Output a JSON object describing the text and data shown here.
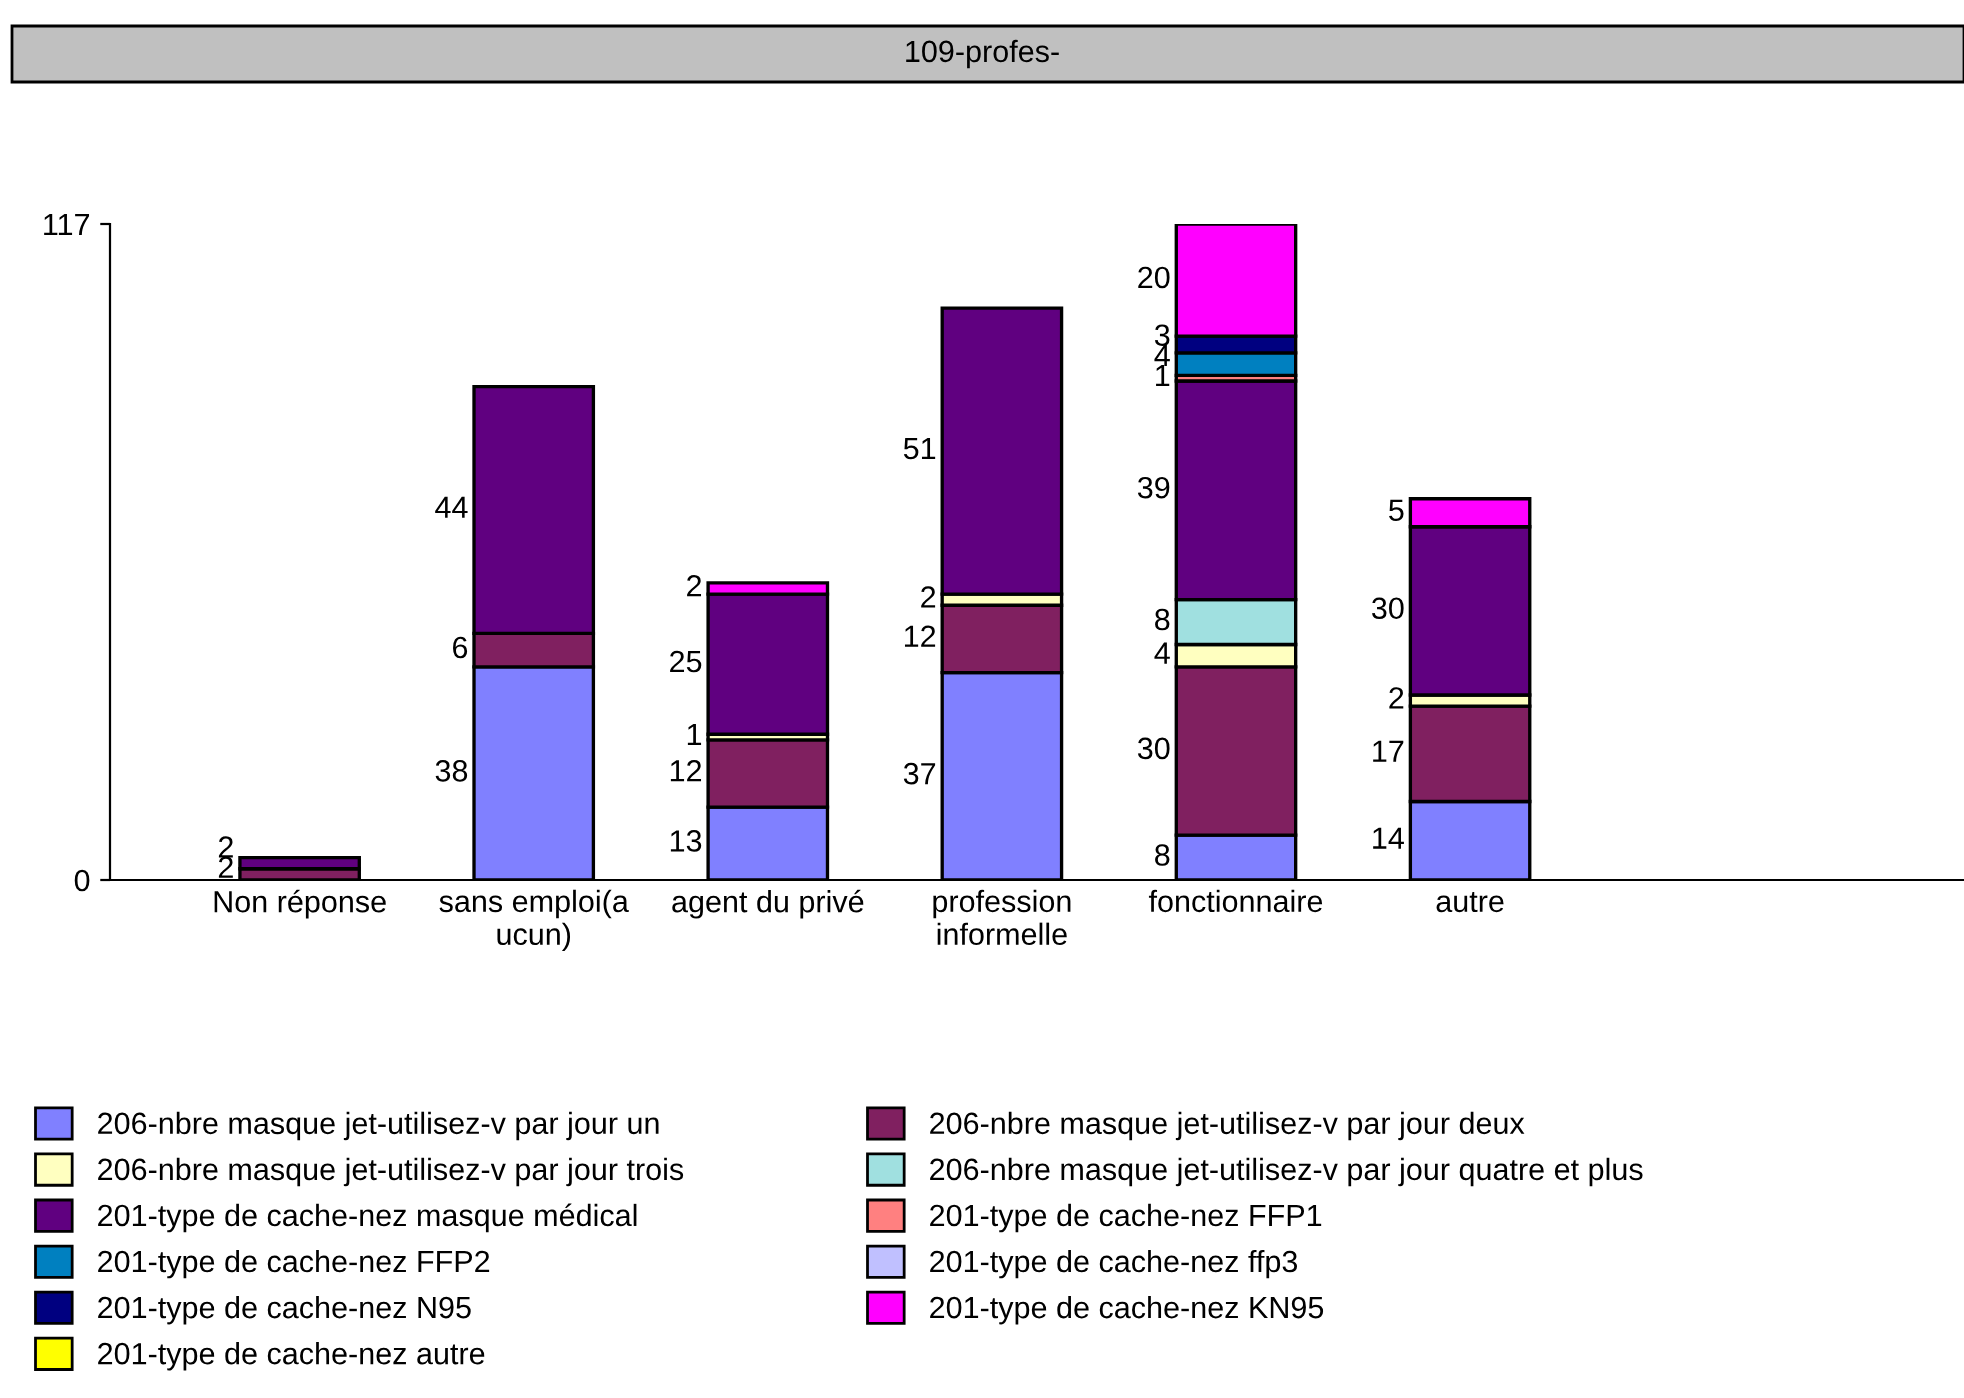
{
  "chart_data": {
    "type": "bar",
    "stacked": true,
    "title": "109-profes-",
    "categories": [
      "Non réponse",
      "sans emploi(a\nucun)",
      "agent du privé",
      "profession\ninformelle",
      "fonctionnaire",
      "autre"
    ],
    "series": [
      {
        "name": "206-nbre masque jet-utilisez-v par jour un",
        "color": "#8080ff",
        "values": [
          null,
          38,
          13,
          37,
          8,
          14
        ]
      },
      {
        "name": "206-nbre masque jet-utilisez-v par jour deux",
        "color": "#802060",
        "values": [
          2,
          6,
          12,
          12,
          30,
          17
        ]
      },
      {
        "name": "206-nbre masque jet-utilisez-v par jour trois",
        "color": "#ffffc0",
        "values": [
          null,
          null,
          1,
          2,
          4,
          2
        ]
      },
      {
        "name": "206-nbre masque jet-utilisez-v par jour quatre et plus",
        "color": "#a0e0e0",
        "values": [
          null,
          null,
          null,
          null,
          8,
          null
        ]
      },
      {
        "name": "201-type de cache-nez masque médical",
        "color": "#600080",
        "values": [
          2,
          44,
          25,
          51,
          39,
          30
        ]
      },
      {
        "name": "201-type de cache-nez FFP1",
        "color": "#ff8080",
        "values": [
          null,
          null,
          null,
          null,
          1,
          null
        ]
      },
      {
        "name": "201-type de cache-nez FFP2",
        "color": "#0080c0",
        "values": [
          null,
          null,
          null,
          null,
          4,
          null
        ]
      },
      {
        "name": "201-type de cache-nez ffp3",
        "color": "#c0c0ff",
        "values": [
          null,
          null,
          null,
          null,
          null,
          null
        ]
      },
      {
        "name": "201-type de cache-nez N95",
        "color": "#000080",
        "values": [
          null,
          null,
          null,
          null,
          3,
          null
        ]
      },
      {
        "name": "201-type de cache-nez KN95",
        "color": "#ff00ff",
        "values": [
          null,
          null,
          2,
          null,
          20,
          5
        ]
      },
      {
        "name": "201-type de cache-nez autre",
        "color": "#ffff00",
        "values": [
          null,
          null,
          null,
          null,
          null,
          null
        ]
      }
    ],
    "ylim": [
      0,
      117
    ],
    "yticks": [
      0,
      117
    ],
    "data_labels": true,
    "grid": false,
    "legend": "bottom"
  }
}
